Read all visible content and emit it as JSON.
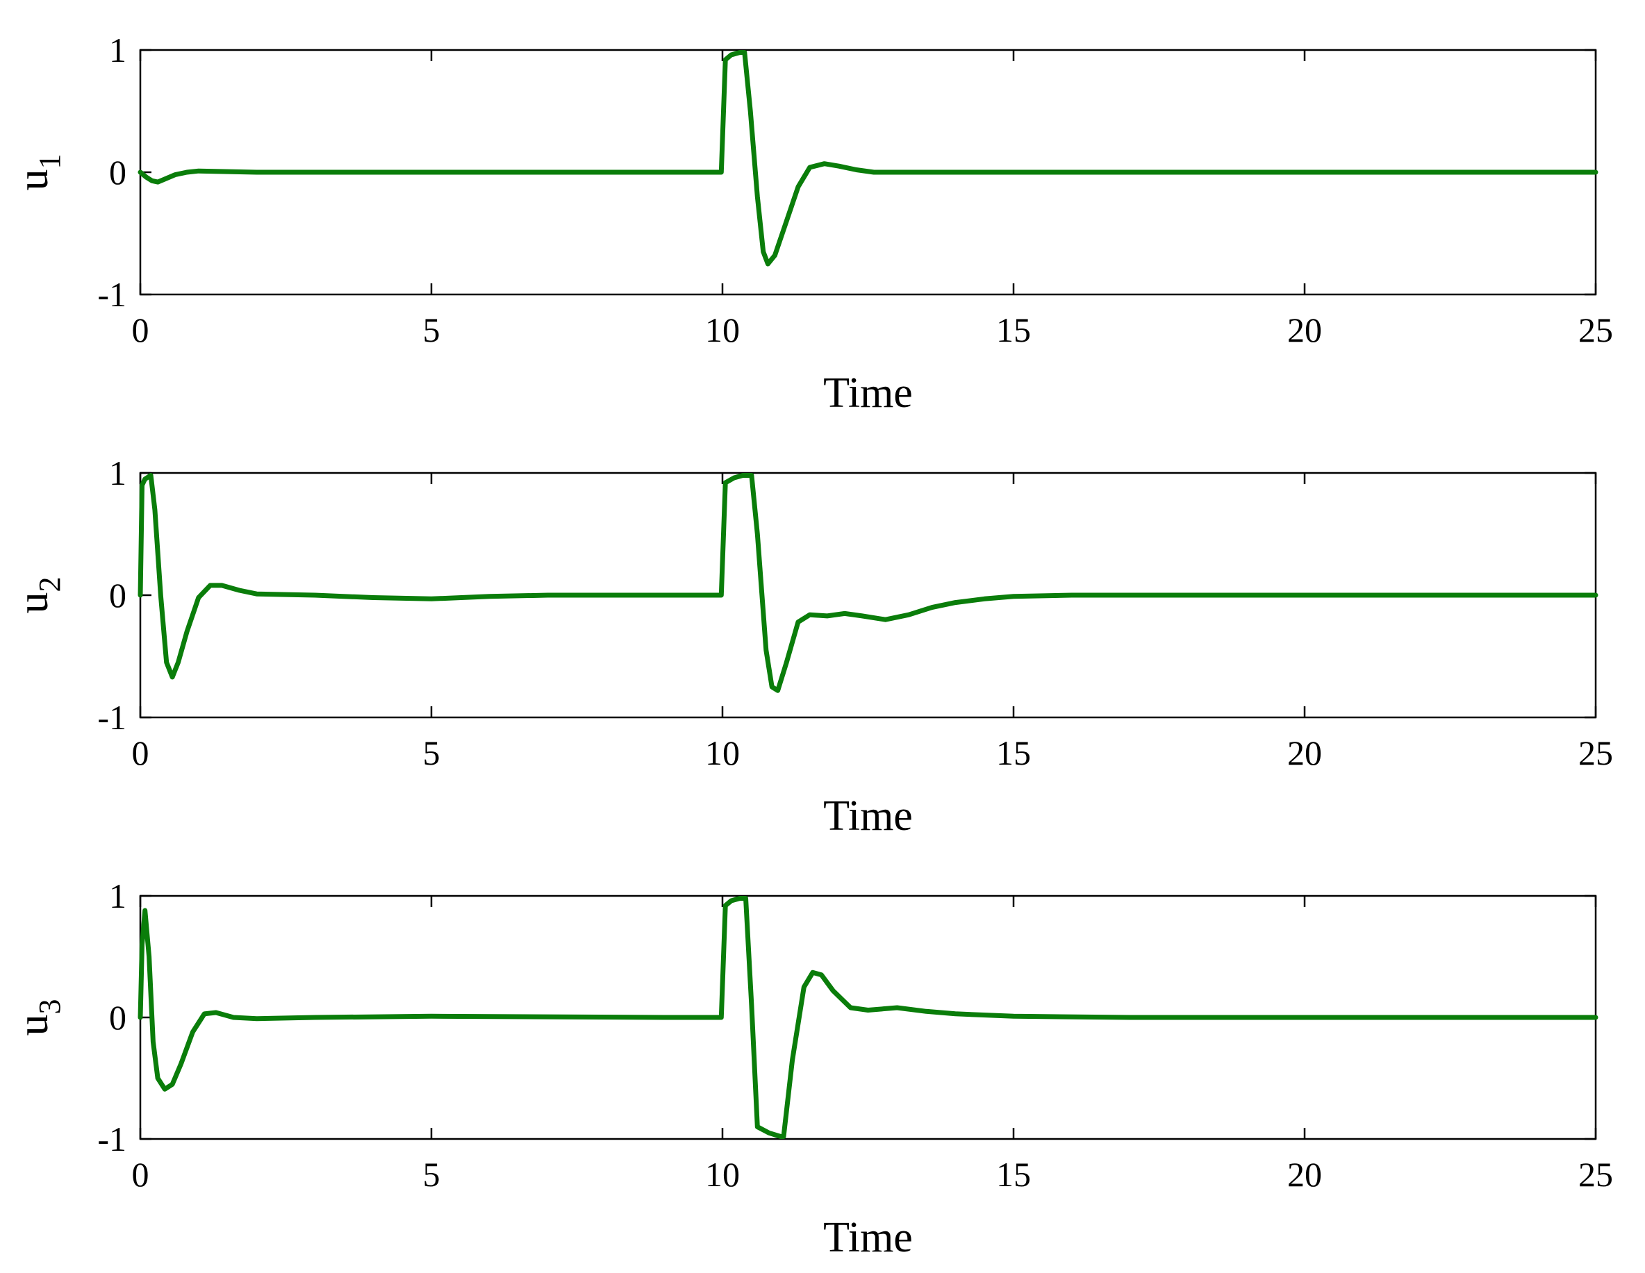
{
  "colors": {
    "line": "#0a7d0a",
    "axes": "#000000",
    "background": "#ffffff"
  },
  "chart_data": [
    {
      "type": "line",
      "ylabel": {
        "main": "u",
        "sub": "1"
      },
      "xlabel": "Time",
      "xlim": [
        0,
        25
      ],
      "ylim": [
        -1,
        1
      ],
      "xticks": [
        "0",
        "5",
        "10",
        "15",
        "20",
        "25"
      ],
      "yticks": [
        "-1",
        "0",
        "1"
      ],
      "grid": false,
      "series": [
        {
          "x": [
            0,
            0.1,
            0.2,
            0.3,
            0.4,
            0.6,
            0.8,
            1.0,
            2.0,
            5.0,
            9.0,
            9.98,
            10.05,
            10.15,
            10.3,
            10.38,
            10.48,
            10.6,
            10.7,
            10.78,
            10.9,
            11.1,
            11.3,
            11.5,
            11.75,
            12.0,
            12.3,
            12.6,
            13.0,
            15.0,
            20.0,
            25.0
          ],
          "y": [
            0,
            -0.04,
            -0.07,
            -0.08,
            -0.06,
            -0.02,
            0.0,
            0.01,
            0.0,
            0.0,
            0.0,
            0.0,
            0.92,
            0.96,
            0.98,
            0.98,
            0.5,
            -0.2,
            -0.65,
            -0.75,
            -0.68,
            -0.4,
            -0.12,
            0.04,
            0.07,
            0.05,
            0.02,
            0.0,
            0.0,
            0.0,
            0.0,
            0.0
          ]
        }
      ]
    },
    {
      "type": "line",
      "ylabel": {
        "main": "u",
        "sub": "2"
      },
      "xlabel": "Time",
      "xlim": [
        0,
        25
      ],
      "ylim": [
        -1,
        1
      ],
      "xticks": [
        "0",
        "5",
        "10",
        "15",
        "20",
        "25"
      ],
      "yticks": [
        "-1",
        "0",
        "1"
      ],
      "grid": false,
      "series": [
        {
          "x": [
            0,
            0.03,
            0.08,
            0.18,
            0.25,
            0.35,
            0.45,
            0.55,
            0.65,
            0.8,
            1.0,
            1.2,
            1.4,
            1.7,
            2.0,
            3.0,
            4.0,
            5.0,
            6.0,
            7.0,
            9.0,
            9.98,
            10.05,
            10.2,
            10.35,
            10.5,
            10.6,
            10.75,
            10.85,
            10.95,
            11.1,
            11.3,
            11.5,
            11.8,
            12.1,
            12.4,
            12.8,
            13.2,
            13.6,
            14.0,
            14.5,
            15.0,
            16.0,
            20.0,
            25.0
          ],
          "y": [
            0,
            0.9,
            0.95,
            0.98,
            0.7,
            0.0,
            -0.55,
            -0.67,
            -0.55,
            -0.3,
            -0.02,
            0.08,
            0.08,
            0.04,
            0.01,
            0.0,
            -0.02,
            -0.03,
            -0.01,
            0.0,
            0.0,
            0.0,
            0.92,
            0.96,
            0.98,
            0.98,
            0.5,
            -0.45,
            -0.75,
            -0.78,
            -0.55,
            -0.22,
            -0.16,
            -0.17,
            -0.15,
            -0.17,
            -0.2,
            -0.16,
            -0.1,
            -0.06,
            -0.03,
            -0.01,
            0.0,
            0.0,
            0.0
          ]
        }
      ]
    },
    {
      "type": "line",
      "ylabel": {
        "main": "u",
        "sub": "3"
      },
      "xlabel": "Time",
      "xlim": [
        0,
        25
      ],
      "ylim": [
        -1,
        1
      ],
      "xticks": [
        "0",
        "5",
        "10",
        "15",
        "20",
        "25"
      ],
      "yticks": [
        "-1",
        "0",
        "1"
      ],
      "grid": false,
      "series": [
        {
          "x": [
            0,
            0.03,
            0.08,
            0.15,
            0.22,
            0.3,
            0.42,
            0.55,
            0.7,
            0.9,
            1.1,
            1.3,
            1.6,
            2.0,
            3.0,
            5.0,
            9.0,
            9.98,
            10.05,
            10.15,
            10.3,
            10.4,
            10.5,
            10.6,
            10.8,
            11.0,
            11.05,
            11.2,
            11.4,
            11.55,
            11.7,
            11.9,
            12.2,
            12.5,
            13.0,
            13.5,
            14.0,
            15.0,
            17.0,
            20.0,
            25.0
          ],
          "y": [
            0,
            0.6,
            0.88,
            0.5,
            -0.2,
            -0.5,
            -0.59,
            -0.55,
            -0.38,
            -0.12,
            0.03,
            0.04,
            0.0,
            -0.01,
            0.0,
            0.01,
            0.0,
            0.0,
            0.92,
            0.96,
            0.98,
            0.98,
            0.1,
            -0.9,
            -0.95,
            -0.98,
            -0.98,
            -0.35,
            0.25,
            0.37,
            0.35,
            0.22,
            0.08,
            0.06,
            0.08,
            0.05,
            0.03,
            0.01,
            0.0,
            0.0,
            0.0
          ]
        }
      ]
    }
  ]
}
